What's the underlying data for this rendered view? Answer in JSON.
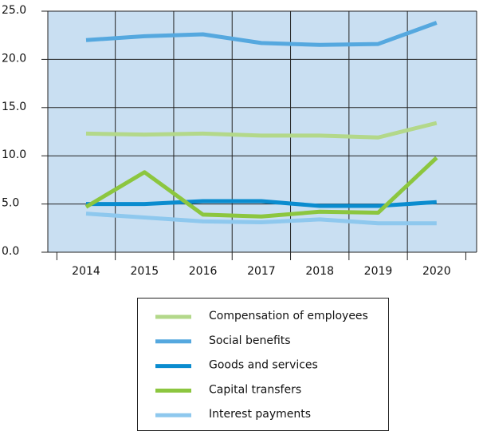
{
  "chart_data": {
    "type": "line",
    "categories": [
      "2014",
      "2015",
      "2016",
      "2017",
      "2018",
      "2019",
      "2020"
    ],
    "series": [
      {
        "name": "Compensation of employees",
        "color": "#b3d88a",
        "values": [
          12.3,
          12.2,
          12.3,
          12.1,
          12.1,
          11.9,
          13.4
        ]
      },
      {
        "name": "Social benefits",
        "color": "#55a8df",
        "values": [
          22.0,
          22.4,
          22.6,
          21.7,
          21.5,
          21.6,
          23.8
        ]
      },
      {
        "name": "Goods and services",
        "color": "#0a8ccf",
        "values": [
          5.0,
          5.0,
          5.3,
          5.3,
          4.8,
          4.8,
          5.2
        ]
      },
      {
        "name": "Capital transfers",
        "color": "#8cc63f",
        "values": [
          4.7,
          8.3,
          3.9,
          3.7,
          4.2,
          4.1,
          9.8
        ]
      },
      {
        "name": "Interest payments",
        "color": "#8ec8ee",
        "values": [
          4.0,
          3.6,
          3.2,
          3.1,
          3.4,
          3.0,
          3.0
        ]
      }
    ],
    "ylim": [
      0,
      25
    ],
    "yticks": [
      {
        "value": 0,
        "label": "0.0"
      },
      {
        "value": 5,
        "label": "5.0"
      },
      {
        "value": 10,
        "label": "10.0"
      },
      {
        "value": 15,
        "label": "15.0"
      },
      {
        "value": 20,
        "label": "20.0"
      },
      {
        "value": 25,
        "label": "25.0"
      }
    ],
    "grid": true,
    "legend": "bottom"
  }
}
